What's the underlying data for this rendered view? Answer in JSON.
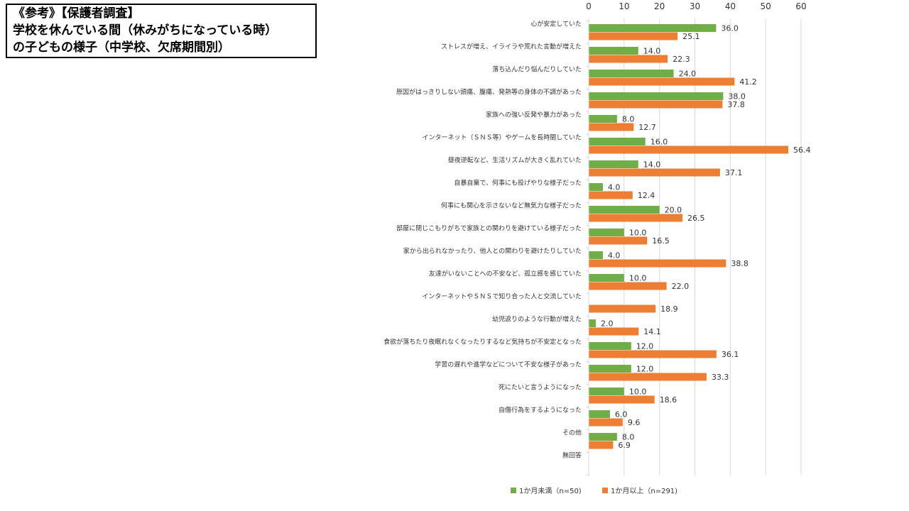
{
  "title_lines": [
    "《参考》【保護者調査】",
    "学校を休んでいる間（休みがちになっている時）",
    "の子どもの様子（中学校、欠席期間別）"
  ],
  "colors": {
    "series1": "#70AD47",
    "series2": "#ED7D31",
    "grid": "#D9D9D9"
  },
  "chart_data": {
    "type": "bar",
    "orientation": "horizontal",
    "title": "学校を休んでいる間（休みがちになっている時）の子どもの様子（中学校、欠席期間別）",
    "xlim": [
      0,
      60
    ],
    "xticks": [
      0,
      10,
      20,
      30,
      40,
      50,
      60
    ],
    "xticks_position": "top",
    "grid": true,
    "legend_position": "bottom",
    "categories": [
      "心が安定していた",
      "ストレスが増え、イライラや荒れた言動が増えた",
      "落ち込んだり悩んだりしていた",
      "原因がはっきりしない頭痛、腹痛、発熱等の身体の不調があった",
      "家族への強い反発や暴力があった",
      "インターネット（ＳＮＳ等）やゲームを長時間していた",
      "昼夜逆転など、生活リズムが大きく乱れていた",
      "自暴自棄で、何事にも投げやりな様子だった",
      "何事にも関心を示さないなど無気力な様子だった",
      "部屋に閉じこもりがちで家族との関わりを避けている様子だった",
      "家から出られなかったり、他人との関わりを避けたりしていた",
      "友達がいないことへの不安など、孤立感を感じていた",
      "インターネットやＳＮＳで知り合った人と交流していた",
      "幼児返りのような行動が増えた",
      "食欲が落ちたり夜眠れなくなったりするなど気持ちが不安定となった",
      "学習の遅れや進学などについて不安な様子があった",
      "死にたいと言うようになった",
      "自傷行為をするようになった",
      "その他",
      "無回答"
    ],
    "series": [
      {
        "name": "1か月未満（n=50)",
        "values": [
          36.0,
          14.0,
          24.0,
          38.0,
          8.0,
          16.0,
          14.0,
          4.0,
          20.0,
          10.0,
          4.0,
          10.0,
          null,
          2.0,
          12.0,
          12.0,
          10.0,
          6.0,
          8.0,
          null
        ],
        "labels": [
          "36.0",
          "14.0",
          "24.0",
          "38.0",
          "8.0",
          "16.0",
          "14.0",
          "4.0",
          "20.0",
          "10.0",
          "4.0",
          "10.0",
          "",
          "2.0",
          "12.0",
          "12.0",
          "10.0",
          "6.0",
          "8.0",
          ""
        ]
      },
      {
        "name": "1か月以上（n=291)",
        "values": [
          25.1,
          22.3,
          41.2,
          37.8,
          12.7,
          56.4,
          37.1,
          12.4,
          26.5,
          16.5,
          38.8,
          22.0,
          18.9,
          14.1,
          36.1,
          33.3,
          18.6,
          9.6,
          6.9,
          null
        ],
        "labels": [
          "25.1",
          "22.3",
          "41.2",
          "37.8",
          "12.7",
          "56.4",
          "37.1",
          "12.4",
          "26.5",
          "16.5",
          "38.8",
          "22.0",
          "18.9",
          "14.1",
          "36.1",
          "33.3",
          "18.6",
          "9.6",
          "6.9",
          ""
        ]
      }
    ]
  }
}
